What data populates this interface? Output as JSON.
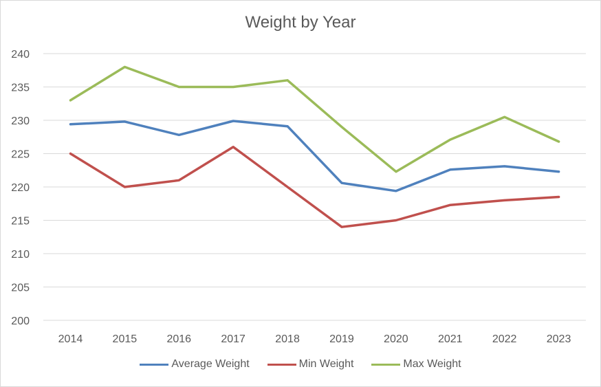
{
  "chart_data": {
    "type": "line",
    "title": "Weight by Year",
    "xlabel": "",
    "ylabel": "",
    "categories": [
      "2014",
      "2015",
      "2016",
      "2017",
      "2018",
      "2019",
      "2020",
      "2021",
      "2022",
      "2023"
    ],
    "ylim": [
      200,
      240
    ],
    "yticks": [
      200,
      205,
      210,
      215,
      220,
      225,
      230,
      235,
      240
    ],
    "grid": true,
    "legend_position": "bottom",
    "series": [
      {
        "name": "Average Weight",
        "color": "#4f81bd",
        "values": [
          229.4,
          229.8,
          227.8,
          229.9,
          229.1,
          220.6,
          219.4,
          222.6,
          223.1,
          222.3
        ]
      },
      {
        "name": "Min Weight",
        "color": "#c0504d",
        "values": [
          225,
          220,
          221,
          226,
          220,
          214,
          215,
          217.3,
          218,
          218.5
        ]
      },
      {
        "name": "Max Weight",
        "color": "#9bbb59",
        "values": [
          233,
          238,
          235,
          235,
          236,
          229,
          222.3,
          227.1,
          230.5,
          226.8
        ]
      }
    ]
  }
}
